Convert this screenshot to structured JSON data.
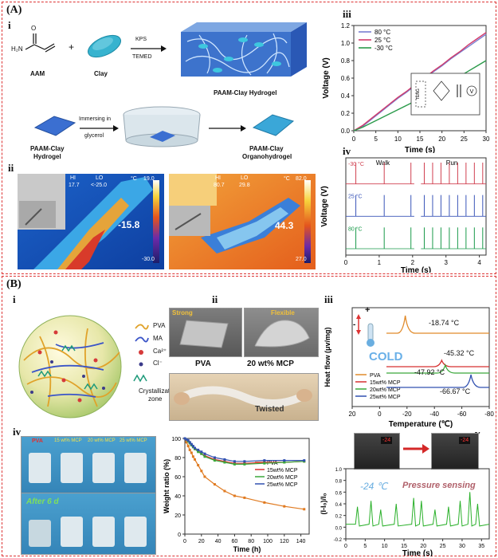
{
  "panel_A": {
    "label": "(A)",
    "sub_i": "i",
    "sub_ii": "ii",
    "sub_iii": "iii",
    "sub_iv": "iv",
    "scheme": {
      "aam": "AAM",
      "clay": "Clay",
      "plus": "+",
      "kps": "KPS",
      "temed": "TEMED",
      "hydrogel_title": "PAAM-Clay Hydrogel",
      "immersing_1": "Immersing in",
      "immersing_2": "glycerol",
      "left_label_1": "PAAM-Clay",
      "left_label_2": "Hydrogel",
      "right_label_1": "PAAM-Clay",
      "right_label_2": "Organohydrogel",
      "amine": "H₂N",
      "carbonyl": "O"
    },
    "thermal_left": {
      "hi": "HI",
      "hi_val": "17.7",
      "lo": "LO",
      "lo_val": "<-25.0",
      "unit": "°C",
      "top": "19.0",
      "bottom": "-30.0",
      "spot": "-15.8"
    },
    "thermal_right": {
      "hi": "HI",
      "hi_val": "80.7",
      "lo": "LO",
      "lo_val": "29.8",
      "unit": "°C",
      "top": "82.0",
      "bottom": "27.0",
      "spot": "44.3"
    },
    "circuit": {
      "teng": "TENG",
      "v": "V"
    },
    "iv_labels": {
      "walk": "Walk",
      "run": "Run",
      "t1": "-30 °C",
      "t2": "25 °C",
      "t3": "80 °C"
    }
  },
  "panel_B": {
    "label": "(B)",
    "sub_i": "i",
    "sub_ii": "ii",
    "sub_iii": "iii",
    "sub_iv": "iv",
    "sub_v": "v",
    "legend": {
      "pva": "PVA",
      "ma": "MA",
      "ca": "Ca²⁺",
      "cl": "Cl⁻",
      "cz1": "Crystallization",
      "cz2": "zone"
    },
    "photos": {
      "strong": "Strong",
      "flexible": "Flexible",
      "pva": "PVA",
      "mcp": "20 wt% MCP",
      "twisted": "Twisted"
    },
    "dsc_labels": {
      "cold": "COLD",
      "v1": "-18.74 °C",
      "v2": "-45.32 °C",
      "v3": "-47.92 °C",
      "v4": "-66.67 °C",
      "minus": "-",
      "plus": "+"
    },
    "jars": {
      "pva": "PVA",
      "m15": "15 wt% MCP",
      "m20": "20 wt% MCP",
      "m25": "25 wt% MCP",
      "after": "After  6 d"
    },
    "pressure": {
      "temp": "-24 ℃",
      "label": "Pressure sensing",
      "lcd1": "-24",
      "lcd2": "-24"
    }
  },
  "chart_data": [
    {
      "type": "line",
      "id": "A-iii",
      "xlabel": "Time (s)",
      "ylabel": "Voltage (V)",
      "xlim": [
        0,
        30
      ],
      "ylim": [
        0,
        1.2
      ],
      "xticks": [
        "0",
        "5",
        "10",
        "15",
        "20",
        "25",
        "30"
      ],
      "yticks": [
        "0.0",
        "0.2",
        "0.4",
        "0.6",
        "0.8",
        "1.0",
        "1.2"
      ],
      "x": [
        0,
        2,
        4,
        6,
        8,
        10,
        12,
        14,
        16,
        18,
        20,
        22,
        24,
        26,
        28,
        30
      ],
      "series": [
        {
          "name": "80 °C",
          "color": "#7a7fd0",
          "values": [
            0.0,
            0.05,
            0.13,
            0.21,
            0.29,
            0.37,
            0.44,
            0.52,
            0.6,
            0.67,
            0.74,
            0.82,
            0.89,
            0.96,
            1.03,
            1.1
          ]
        },
        {
          "name": "25 °C",
          "color": "#d23a6a",
          "values": [
            0.0,
            0.06,
            0.14,
            0.22,
            0.3,
            0.38,
            0.45,
            0.53,
            0.6,
            0.68,
            0.75,
            0.83,
            0.9,
            0.98,
            1.05,
            1.12
          ]
        },
        {
          "name": "-30 °C",
          "color": "#2a9a4a",
          "values": [
            0.0,
            0.04,
            0.09,
            0.14,
            0.19,
            0.24,
            0.29,
            0.34,
            0.4,
            0.45,
            0.51,
            0.57,
            0.62,
            0.68,
            0.74,
            0.8
          ]
        }
      ],
      "legend": "top-left"
    },
    {
      "type": "line",
      "id": "A-iv",
      "xlabel": "Time (s)",
      "ylabel": "Voltage (V)",
      "xlim": [
        0,
        4.2
      ],
      "xticks": [
        "0",
        "1",
        "2",
        "3",
        "4"
      ],
      "series": [
        {
          "name": "-30 °C",
          "color": "#d04050",
          "walk_peaks_s": [
            0.3,
            1.15,
            1.95
          ],
          "run_peaks_s": [
            2.35,
            2.6,
            2.85,
            3.1,
            3.35,
            3.6,
            3.85,
            4.1
          ]
        },
        {
          "name": "25 °C",
          "color": "#3a55b8",
          "walk_peaks_s": [
            0.3,
            1.15,
            1.95
          ],
          "run_peaks_s": [
            2.35,
            2.6,
            2.85,
            3.1,
            3.35,
            3.6,
            3.85,
            4.1
          ]
        },
        {
          "name": "80 °C",
          "color": "#1a9a4a",
          "walk_peaks_s": [
            0.3,
            1.15,
            1.95
          ],
          "run_peaks_s": [
            2.35,
            2.6,
            2.85,
            3.1,
            3.35,
            3.6,
            3.85,
            4.1
          ]
        }
      ]
    },
    {
      "type": "line",
      "id": "B-iii",
      "xlabel": "Temperature (℃)",
      "ylabel": "Heat flow (μv/mg)",
      "xlim": [
        20,
        -80
      ],
      "xticks": [
        "20",
        "0",
        "-20",
        "-40",
        "-60",
        "-80"
      ],
      "series": [
        {
          "name": "PVA",
          "color": "#e08a2a",
          "peak_c": -18.74
        },
        {
          "name": "15wt% MCP",
          "color": "#d63030",
          "peak_c": -45.32
        },
        {
          "name": "20wt% MCP",
          "color": "#3aa83a",
          "peak_c": -47.92
        },
        {
          "name": "25wt% MCP",
          "color": "#3050b0",
          "peak_c": -66.67
        }
      ],
      "legend": "bottom-left"
    },
    {
      "type": "line",
      "id": "B-iv",
      "xlabel": "Time (h)",
      "ylabel": "Weight ratio (%)",
      "xlim": [
        0,
        150
      ],
      "ylim": [
        0,
        100
      ],
      "xticks": [
        "0",
        "20",
        "40",
        "60",
        "80",
        "100",
        "120",
        "140"
      ],
      "yticks": [
        "0",
        "20",
        "40",
        "60",
        "80",
        "100"
      ],
      "x": [
        0,
        2,
        4,
        6,
        8,
        10,
        12,
        16,
        20,
        24,
        36,
        48,
        60,
        72,
        96,
        120,
        144
      ],
      "series": [
        {
          "name": "PVA",
          "color": "#e07a20",
          "values": [
            100,
            96,
            92,
            88,
            85,
            81,
            78,
            72,
            66,
            60,
            52,
            45,
            40,
            38,
            33,
            29,
            26
          ]
        },
        {
          "name": "15wt% MCP",
          "color": "#d63030",
          "values": [
            100,
            99,
            97,
            95,
            93,
            91,
            89,
            87,
            84,
            82,
            78,
            76,
            74,
            74,
            75,
            75,
            76
          ]
        },
        {
          "name": "20wt% MCP",
          "color": "#3aa83a",
          "values": [
            100,
            99,
            97,
            95,
            93,
            91,
            89,
            86,
            84,
            81,
            77,
            75,
            73,
            73,
            74,
            75,
            76
          ]
        },
        {
          "name": "25wt% MCP",
          "color": "#3050b0",
          "values": [
            100,
            99,
            98,
            96,
            94,
            92,
            90,
            88,
            86,
            84,
            80,
            78,
            76,
            76,
            77,
            77,
            77
          ]
        }
      ],
      "legend": "top-right"
    },
    {
      "type": "line",
      "id": "B-v",
      "xlabel": "Time (s)",
      "ylabel": "(I-I₀)/I₀",
      "xlim": [
        0,
        37
      ],
      "ylim": [
        -0.2,
        1.0
      ],
      "xticks": [
        "0",
        "5",
        "10",
        "15",
        "20",
        "25",
        "30",
        "35"
      ],
      "yticks": [
        "-0.2",
        "0.0",
        "0.2",
        "0.4",
        "0.6",
        "0.8",
        "1.0"
      ],
      "series": [
        {
          "name": "",
          "color": "#2ab02a",
          "peaks_s": [
            3,
            6.5,
            9,
            13,
            17.5,
            19.5,
            23,
            26.5,
            29.5,
            32,
            34
          ]
        }
      ]
    }
  ]
}
